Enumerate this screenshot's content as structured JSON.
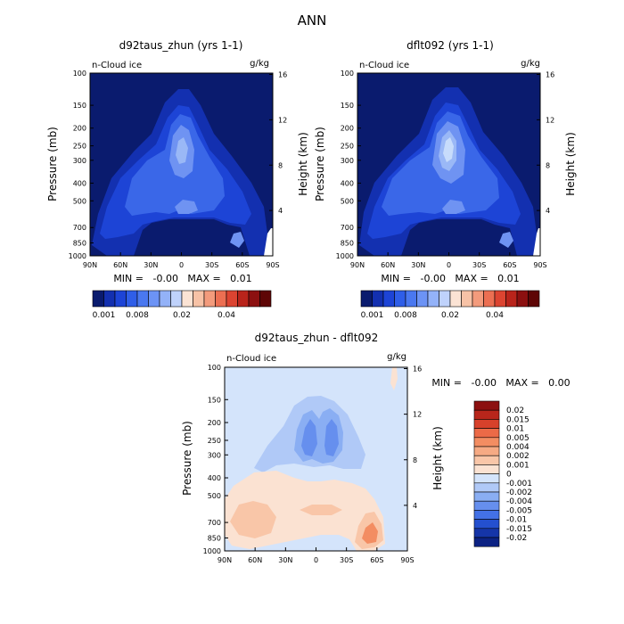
{
  "figure_title": "ANN",
  "chart_data": [
    {
      "type": "heatmap",
      "title": "d92taus_zhun (yrs 1-1)",
      "subtitle_left": "n-Cloud ice",
      "subtitle_right": "g/kg",
      "ylabel": "Pressure (mb)",
      "ylabel_right": "Height (km)",
      "x_ticks": [
        "90N",
        "60N",
        "30N",
        "0",
        "30S",
        "60S",
        "90S"
      ],
      "y_ticks": [
        "100",
        "150",
        "200",
        "250",
        "300",
        "400",
        "500",
        "700",
        "850",
        "1000"
      ],
      "y_right_ticks": [
        "16",
        "12",
        "8",
        "4"
      ],
      "stats": "MIN =   -0.00   MAX =   0.01",
      "colorbar_labels": [
        "0.001",
        "0.008",
        "0.02",
        "0.04"
      ],
      "colorbar_colors": [
        "#0a1b6e",
        "#1330b0",
        "#1d44d6",
        "#2f5ee8",
        "#4a78f0",
        "#6c93f5",
        "#93b2f8",
        "#bfd2fb",
        "#fbe3d4",
        "#f7c2a6",
        "#f39b7c",
        "#ec6f52",
        "#dc4431",
        "#b9241b",
        "#8c1010",
        "#5e0606"
      ],
      "field_palette": {
        "background": "#0a1b6e",
        "level1": "#1330b0",
        "level2": "#1d44d6",
        "level3": "#3a67e8",
        "level4": "#6f93f2",
        "level5": "#9ab8f6",
        "level6": "#c7dcfb"
      }
    },
    {
      "type": "heatmap",
      "title": "dflt092 (yrs 1-1)",
      "subtitle_left": "n-Cloud ice",
      "subtitle_right": "g/kg",
      "ylabel": "Pressure (mb)",
      "ylabel_right": "Height (km)",
      "x_ticks": [
        "90N",
        "60N",
        "30N",
        "0",
        "30S",
        "60S",
        "90S"
      ],
      "y_ticks": [
        "100",
        "150",
        "200",
        "250",
        "300",
        "400",
        "500",
        "700",
        "850",
        "1000"
      ],
      "y_right_ticks": [
        "16",
        "12",
        "8",
        "4"
      ],
      "stats": "MIN =   -0.00   MAX =   0.01",
      "colorbar_labels": [
        "0.001",
        "0.008",
        "0.02",
        "0.04"
      ]
    },
    {
      "type": "heatmap",
      "title": "d92taus_zhun - dflt092",
      "subtitle_left": "n-Cloud ice",
      "subtitle_right": "g/kg",
      "ylabel": "Pressure (mb)",
      "ylabel_right": "Height (km)",
      "x_ticks": [
        "90N",
        "60N",
        "30N",
        "0",
        "30S",
        "60S",
        "90S"
      ],
      "y_ticks": [
        "100",
        "150",
        "200",
        "250",
        "300",
        "400",
        "500",
        "700",
        "850",
        "1000"
      ],
      "y_right_ticks": [
        "16",
        "12",
        "8",
        "4"
      ],
      "stats": "MIN =   -0.00   MAX =   0.00",
      "colorbar_labels": [
        "0.02",
        "0.015",
        "0.01",
        "0.005",
        "0.004",
        "0.002",
        "0.001",
        "0",
        "-0.001",
        "-0.002",
        "-0.004",
        "-0.005",
        "-0.01",
        "-0.015",
        "-0.02"
      ],
      "colorbar_colors": [
        "#8c1010",
        "#b8261b",
        "#d7412b",
        "#ec6a47",
        "#f38d62",
        "#f6aa84",
        "#f9c6a8",
        "#fbe2d2",
        "#d4e4fb",
        "#b0c9f7",
        "#8aaef3",
        "#668fee",
        "#4371e6",
        "#2450cf",
        "#1535a8",
        "#0c2283"
      ],
      "field_palette": {
        "background": "#d4e4fb",
        "neg1": "#b0c9f7",
        "neg2": "#8aaef3",
        "neg3": "#668fee",
        "pos1": "#fbe2d2",
        "pos2": "#f9c6a8",
        "pos3": "#f38d62"
      }
    }
  ]
}
